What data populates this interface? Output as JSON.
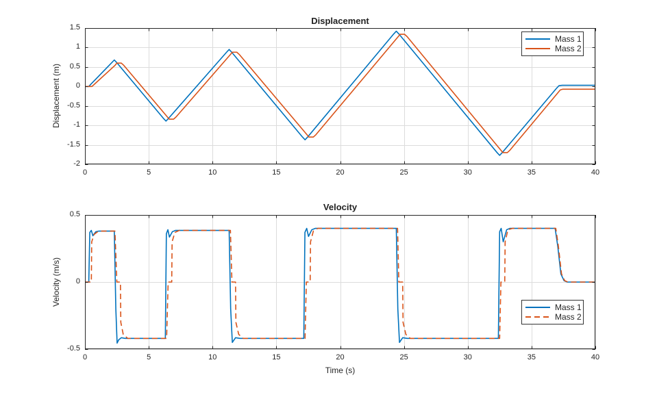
{
  "figure": {
    "background": "#ffffff",
    "frame_color": "#262626",
    "grid_color": "#dcdcdc",
    "text_color": "#252525",
    "mass1_color": "#0072BD",
    "mass2_color": "#D95319"
  },
  "chart_data": [
    {
      "type": "line",
      "title": "Displacement",
      "xlabel": "",
      "ylabel": "Displacement (m)",
      "xlim": [
        0,
        40
      ],
      "ylim": [
        -2,
        1.5
      ],
      "xticks": [
        0,
        5,
        10,
        15,
        20,
        25,
        30,
        35,
        40
      ],
      "yticks": [
        -2,
        -1.5,
        -1,
        -0.5,
        0,
        0.5,
        1,
        1.5
      ],
      "grid": true,
      "legend_location": "northeast",
      "series": [
        {
          "name": "Mass 1",
          "color": "#0072BD",
          "dash": "solid",
          "x": [
            0,
            0.3,
            0.5,
            2.1,
            2.3,
            2.5,
            6.15,
            6.35,
            6.55,
            11.1,
            11.3,
            11.5,
            17.05,
            17.25,
            17.45,
            24.2,
            24.4,
            24.6,
            32.3,
            32.5,
            32.7,
            36.95,
            37.15,
            37.4,
            40
          ],
          "y": [
            0,
            0,
            0.07,
            0.61,
            0.68,
            0.61,
            -0.82,
            -0.89,
            -0.82,
            0.88,
            0.95,
            0.88,
            -1.3,
            -1.37,
            -1.3,
            1.35,
            1.42,
            1.35,
            -1.7,
            -1.77,
            -1.7,
            -0.05,
            0.02,
            0.03,
            0.03
          ]
        },
        {
          "name": "Mass 2",
          "color": "#D95319",
          "dash": "solid",
          "x": [
            0,
            0.55,
            0.75,
            2.35,
            2.5,
            2.85,
            3.05,
            6.45,
            6.6,
            6.95,
            7.15,
            11.4,
            11.55,
            11.9,
            12.1,
            17.4,
            17.55,
            17.9,
            18.1,
            24.55,
            24.7,
            25.05,
            25.25,
            32.6,
            32.75,
            33.1,
            33.3,
            37.25,
            37.45,
            40
          ],
          "y": [
            0,
            0,
            0.06,
            0.54,
            0.6,
            0.6,
            0.54,
            -0.78,
            -0.84,
            -0.84,
            -0.78,
            0.82,
            0.88,
            0.88,
            0.82,
            -1.24,
            -1.3,
            -1.3,
            -1.24,
            1.28,
            1.34,
            1.34,
            1.28,
            -1.64,
            -1.7,
            -1.7,
            -1.64,
            -0.09,
            -0.07,
            -0.07
          ]
        }
      ]
    },
    {
      "type": "line",
      "title": "Velocity",
      "xlabel": "Time (s)",
      "ylabel": "Velocity (m/s)",
      "xlim": [
        0,
        40
      ],
      "ylim": [
        -0.5,
        0.5
      ],
      "xticks": [
        0,
        5,
        10,
        15,
        20,
        25,
        30,
        35,
        40
      ],
      "yticks": [
        -0.5,
        0,
        0.5
      ],
      "grid": true,
      "legend_location": "east",
      "series": [
        {
          "name": "Mass 1",
          "color": "#0072BD",
          "dash": "solid",
          "x": [
            0,
            0.3,
            0.38,
            0.5,
            0.62,
            0.85,
            1.1,
            2.3,
            2.42,
            2.52,
            2.65,
            2.85,
            3.15,
            6.3,
            6.38,
            6.5,
            6.62,
            6.85,
            7.1,
            11.3,
            11.42,
            11.55,
            11.8,
            12.15,
            17.15,
            17.24,
            17.38,
            17.52,
            17.78,
            18.05,
            24.4,
            24.52,
            24.65,
            24.9,
            25.25,
            32.4,
            32.5,
            32.62,
            32.78,
            33.05,
            33.3,
            36.85,
            37.05,
            37.3,
            37.55,
            37.8,
            40
          ],
          "y": [
            0,
            0,
            0.37,
            0.385,
            0.345,
            0.375,
            0.38,
            0.38,
            -0.2,
            -0.455,
            -0.43,
            -0.415,
            -0.42,
            -0.42,
            0.36,
            0.39,
            0.335,
            0.375,
            0.385,
            0.385,
            -0.2,
            -0.45,
            -0.415,
            -0.42,
            -0.42,
            0.37,
            0.4,
            0.34,
            0.39,
            0.4,
            0.4,
            -0.2,
            -0.45,
            -0.415,
            -0.42,
            -0.42,
            0.375,
            0.4,
            0.3,
            0.39,
            0.4,
            0.4,
            0.27,
            0.06,
            0.01,
            0,
            0
          ]
        },
        {
          "name": "Mass 2",
          "color": "#D95319",
          "dash": "dashed",
          "x": [
            0,
            0.5,
            0.53,
            0.72,
            1.0,
            1.35,
            2.35,
            2.5,
            2.78,
            2.81,
            3.0,
            3.35,
            6.4,
            6.52,
            6.8,
            6.83,
            7.05,
            7.4,
            11.4,
            11.52,
            11.8,
            11.83,
            12.05,
            12.4,
            17.25,
            17.35,
            17.65,
            17.68,
            17.9,
            18.25,
            24.5,
            24.6,
            24.9,
            24.93,
            25.15,
            25.5,
            32.5,
            32.6,
            32.9,
            32.93,
            33.15,
            33.5,
            36.9,
            37.1,
            37.35,
            37.6,
            37.85,
            40
          ],
          "y": [
            0,
            0,
            0.3,
            0.355,
            0.375,
            0.38,
            0.38,
            0,
            0,
            -0.3,
            -0.39,
            -0.42,
            -0.42,
            0,
            0,
            0.3,
            0.37,
            0.385,
            0.385,
            0,
            0,
            -0.3,
            -0.39,
            -0.42,
            -0.42,
            0,
            0,
            0.3,
            0.38,
            0.4,
            0.4,
            0,
            0,
            -0.3,
            -0.39,
            -0.42,
            -0.42,
            0,
            0,
            0.3,
            0.39,
            0.4,
            0.4,
            0.27,
            0.06,
            0.01,
            0,
            0
          ]
        }
      ]
    }
  ]
}
